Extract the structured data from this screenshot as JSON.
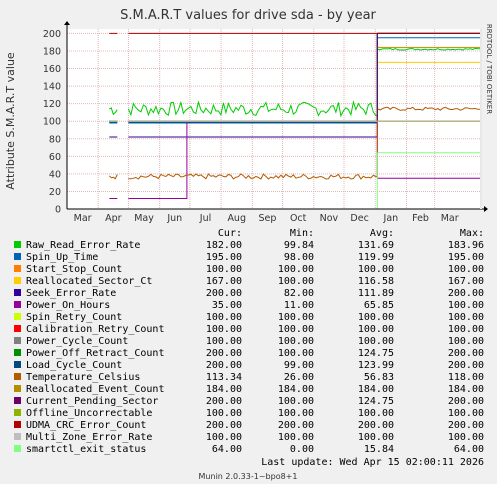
{
  "chart_data": {
    "type": "line",
    "title": "S.M.A.R.T values for drive sda - by year",
    "ylabel": "Attribute S.M.A.R.T value",
    "side_label": "RRDTOOL / TOBI OETIKER",
    "ylim": [
      0,
      205
    ],
    "yticks": [
      0,
      20,
      40,
      60,
      80,
      100,
      120,
      140,
      160,
      180,
      200
    ],
    "x_labels": [
      "Mar",
      "Apr",
      "May",
      "Jun",
      "Jul",
      "Aug",
      "Sep",
      "Oct",
      "Nov",
      "Dec",
      "Jan",
      "Feb",
      "Mar"
    ],
    "x_start": "2025-03-01",
    "x_end": "2026-04-15",
    "x_ticks": [
      "2025-03-01",
      "2025-04-01",
      "2025-05-01",
      "2025-06-01",
      "2025-07-01",
      "2025-08-01",
      "2025-09-01",
      "2025-10-01",
      "2025-11-01",
      "2025-12-01",
      "2026-01-01",
      "2026-02-01",
      "2026-03-01"
    ],
    "x_gap_start": "2025-04-20",
    "x_gap_end": "2025-05-01",
    "x_event": "2026-01-03",
    "columns": [
      "Cur:",
      "Min:",
      "Avg:",
      "Max:"
    ],
    "series": [
      {
        "name": "Raw_Read_Error_Rate",
        "color": "#00cc00",
        "cur": "182.00",
        "min": "99.84",
        "avg": "131.69",
        "max": "183.96",
        "before": 114,
        "before_noise": 8,
        "after": 182,
        "after_noise": 1
      },
      {
        "name": "Spin_Up_Time",
        "color": "#0066b3",
        "cur": "195.00",
        "min": "98.00",
        "avg": "119.99",
        "max": "195.00",
        "before": 98,
        "before_noise": 0,
        "after": 195,
        "after_noise": 0
      },
      {
        "name": "Start_Stop_Count",
        "color": "#ff8000",
        "cur": "100.00",
        "min": "100.00",
        "avg": "100.00",
        "max": "100.00",
        "before": 100,
        "before_noise": 0,
        "after": 100,
        "after_noise": 0
      },
      {
        "name": "Reallocated_Sector_Ct",
        "color": "#ffcc00",
        "cur": "167.00",
        "min": "100.00",
        "avg": "116.58",
        "max": "167.00",
        "before": 100,
        "before_noise": 0,
        "after": 167,
        "after_noise": 0
      },
      {
        "name": "Seek_Error_Rate",
        "color": "#330099",
        "cur": "200.00",
        "min": "82.00",
        "avg": "111.89",
        "max": "200.00",
        "before": 82,
        "before_noise": 0,
        "after": 200,
        "after_noise": 0
      },
      {
        "name": "Power_On_Hours",
        "color": "#990099",
        "cur": "35.00",
        "min": "11.00",
        "avg": "65.85",
        "max": "100.00",
        "before": 12,
        "before_noise": 0,
        "mid": 99,
        "mid_start": "2025-06-28",
        "after": 35,
        "after_noise": 0
      },
      {
        "name": "Spin_Retry_Count",
        "color": "#ccff00",
        "cur": "100.00",
        "min": "100.00",
        "avg": "100.00",
        "max": "100.00",
        "before": 100,
        "before_noise": 0,
        "after": 100,
        "after_noise": 0
      },
      {
        "name": "Calibration_Retry_Count",
        "color": "#ff0000",
        "cur": "100.00",
        "min": "100.00",
        "avg": "100.00",
        "max": "100.00",
        "before": 100,
        "before_noise": 0,
        "after": 100,
        "after_noise": 0
      },
      {
        "name": "Power_Cycle_Count",
        "color": "#808080",
        "cur": "100.00",
        "min": "100.00",
        "avg": "100.00",
        "max": "100.00",
        "before": 100,
        "before_noise": 0,
        "after": 100,
        "after_noise": 0
      },
      {
        "name": "Power_Off_Retract_Count",
        "color": "#008f00",
        "cur": "200.00",
        "min": "100.00",
        "avg": "124.75",
        "max": "200.00",
        "before": 100,
        "before_noise": 0,
        "after": 200,
        "after_noise": 0
      },
      {
        "name": "Load_Cycle_Count",
        "color": "#00487d",
        "cur": "200.00",
        "min": "99.00",
        "avg": "123.99",
        "max": "200.00",
        "before": 99,
        "before_noise": 0,
        "after": 200,
        "after_noise": 0
      },
      {
        "name": "Temperature_Celsius",
        "color": "#b35a00",
        "cur": "113.34",
        "min": "26.00",
        "avg": "56.83",
        "max": "118.00",
        "before": 37,
        "before_noise": 3,
        "after": 114,
        "after_noise": 2
      },
      {
        "name": "Reallocated_Event_Count",
        "color": "#b38f00",
        "cur": "184.00",
        "min": "184.00",
        "avg": "184.00",
        "max": "184.00",
        "before": 184,
        "before_noise": 0,
        "after": 184,
        "after_noise": 0,
        "starts_at_event": true
      },
      {
        "name": "Current_Pending_Sector",
        "color": "#6b006b",
        "cur": "200.00",
        "min": "100.00",
        "avg": "124.75",
        "max": "200.00",
        "before": 100,
        "before_noise": 0,
        "after": 200,
        "after_noise": 0
      },
      {
        "name": "Offline_Uncorrectable",
        "color": "#8fb300",
        "cur": "100.00",
        "min": "100.00",
        "avg": "100.00",
        "max": "100.00",
        "before": 100,
        "before_noise": 0,
        "after": 100,
        "after_noise": 0
      },
      {
        "name": "UDMA_CRC_Error_Count",
        "color": "#b30000",
        "cur": "200.00",
        "min": "200.00",
        "avg": "200.00",
        "max": "200.00",
        "before": 200,
        "before_noise": 0,
        "after": 200,
        "after_noise": 0
      },
      {
        "name": "Multi_Zone_Error_Rate",
        "color": "#bebebe",
        "cur": "100.00",
        "min": "100.00",
        "avg": "100.00",
        "max": "100.00",
        "before": 100,
        "before_noise": 0,
        "after": 100,
        "after_noise": 0
      },
      {
        "name": "smartctl_exit_status",
        "color": "#80ff80",
        "cur": "64.00",
        "min": "0.00",
        "avg": "15.84",
        "max": "64.00",
        "before": 0,
        "before_noise": 0,
        "after": 64,
        "after_noise": 0
      }
    ]
  },
  "footer": {
    "last_update": "Last update:  Wed Apr 15 02:00:11 2026",
    "version": "Munin 2.0.33-1~bpo8+1"
  }
}
